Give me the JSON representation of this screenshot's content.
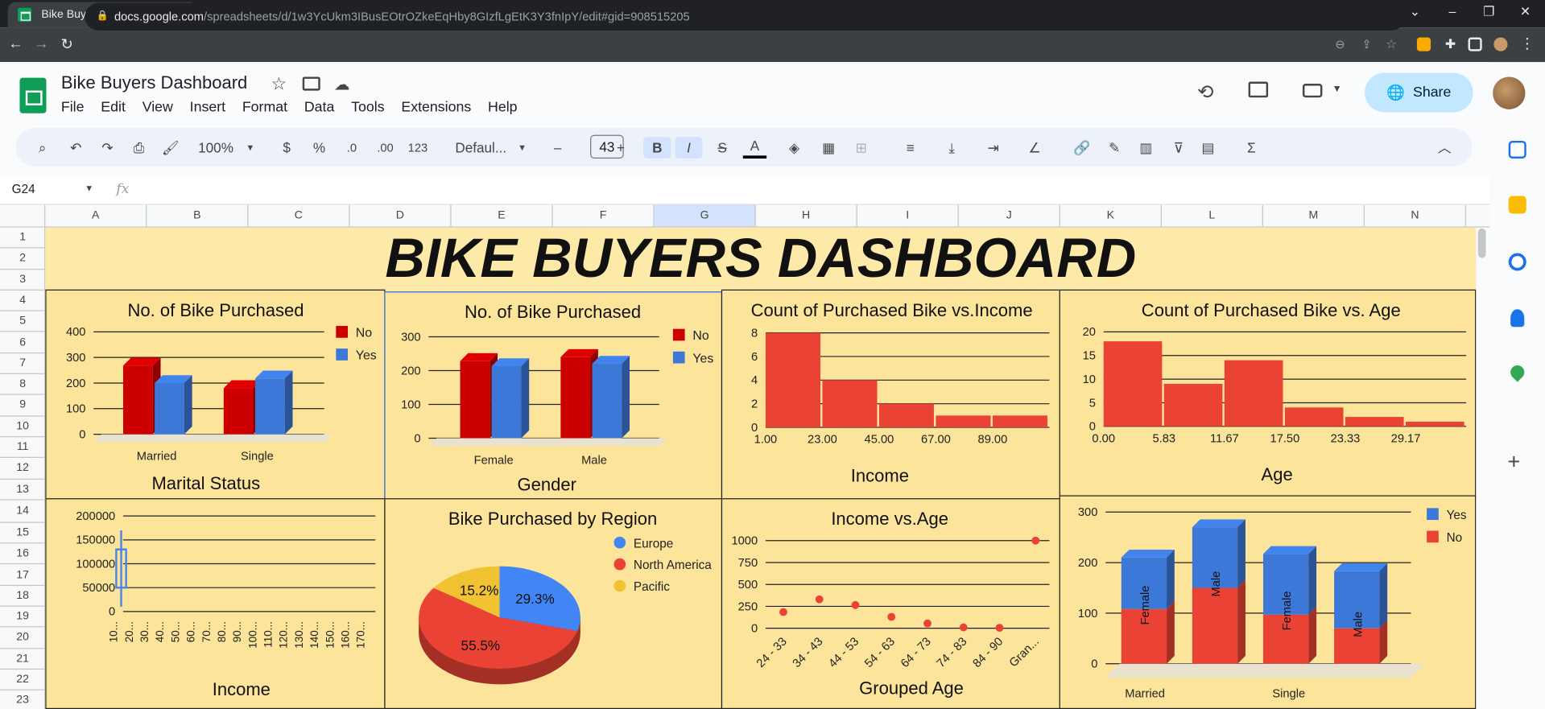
{
  "browser": {
    "tab_title": "Bike Buyers Dashboard - Google",
    "url_host": "docs.google.com",
    "url_path": "/spreadsheets/d/1w3YcUkm3IBusEOtrOZkeEqHby8GIzfLgEtK3Y3fnIpY/edit#gid=908515205"
  },
  "app": {
    "doc_title": "Bike Buyers Dashboard",
    "share_label": "Share",
    "menus": [
      "File",
      "Edit",
      "View",
      "Insert",
      "Format",
      "Data",
      "Tools",
      "Extensions",
      "Help"
    ]
  },
  "toolbar": {
    "zoom": "100%",
    "currency": "$",
    "percent": "%",
    "dec_less": ".0",
    "dec_more": ".00",
    "number_format": "123",
    "font": "Defaul...",
    "font_size": "43",
    "bold": "B",
    "italic": "I",
    "strike": "S",
    "text_color": "A"
  },
  "formula_bar": {
    "cell_ref": "G24",
    "fx": "fx"
  },
  "columns": [
    "A",
    "B",
    "C",
    "D",
    "E",
    "F",
    "G",
    "H",
    "I",
    "J",
    "K",
    "L",
    "M",
    "N"
  ],
  "rows": [
    "1",
    "2",
    "3",
    "4",
    "5",
    "6",
    "7",
    "8",
    "9",
    "10",
    "11",
    "12",
    "13",
    "14",
    "15",
    "16",
    "17",
    "18",
    "19",
    "20",
    "21",
    "22",
    "23"
  ],
  "dashboard_title": "BIKE BUYERS DASHBOARD",
  "colors": {
    "no": "#cc0000",
    "yes": "#3c78d8",
    "hist": "#ea4335",
    "europe": "#4285f4",
    "north_america": "#ea4335",
    "pacific": "#f1c232",
    "panel": "#fde49b"
  },
  "chart_data": [
    {
      "id": "marital",
      "type": "bar",
      "title": "No. of Bike Purchased",
      "xlabel": "Marital Status",
      "ylabel": "",
      "categories": [
        "Married",
        "Single"
      ],
      "series": [
        {
          "name": "No",
          "values": [
            268,
            180
          ]
        },
        {
          "name": "Yes",
          "values": [
            200,
            218
          ]
        }
      ],
      "ylim": [
        0,
        400
      ],
      "yticks": [
        "0",
        "100",
        "200",
        "300",
        "400"
      ],
      "legend": "right"
    },
    {
      "id": "gender",
      "type": "bar",
      "title": "No. of Bike Purchased",
      "xlabel": "Gender",
      "ylabel": "",
      "categories": [
        "Female",
        "Male"
      ],
      "series": [
        {
          "name": "No",
          "values": [
            228,
            240
          ]
        },
        {
          "name": "Yes",
          "values": [
            213,
            220
          ]
        }
      ],
      "ylim": [
        0,
        300
      ],
      "yticks": [
        "0",
        "100",
        "200",
        "300"
      ],
      "legend": "right"
    },
    {
      "id": "income_hist",
      "type": "bar",
      "title": "Count of Purchased Bike vs.Income",
      "xlabel": "Income",
      "ylabel": "",
      "categories": [
        "1.00",
        "23.00",
        "45.00",
        "67.00",
        "89.00"
      ],
      "values": [
        8,
        4,
        2,
        1,
        1
      ],
      "ylim": [
        0,
        8
      ],
      "yticks": [
        "0",
        "2",
        "4",
        "6",
        "8"
      ]
    },
    {
      "id": "age_hist",
      "type": "bar",
      "title": "Count of Purchased Bike vs. Age",
      "xlabel": "Age",
      "ylabel": "",
      "categories": [
        "0.00",
        "5.83",
        "11.67",
        "17.50",
        "23.33",
        "29.17"
      ],
      "values": [
        18,
        9,
        14,
        4,
        2,
        1
      ],
      "ylim": [
        0,
        20
      ],
      "yticks": [
        "0",
        "5",
        "10",
        "15",
        "20"
      ]
    },
    {
      "id": "income_box",
      "type": "line",
      "title": "",
      "xlabel": "Income",
      "ylabel": "",
      "categories": [
        "10...",
        "20...",
        "30...",
        "40...",
        "50...",
        "60...",
        "70...",
        "80...",
        "90...",
        "100...",
        "110...",
        "120...",
        "130...",
        "140...",
        "150...",
        "160...",
        "170..."
      ],
      "ylim": [
        0,
        200000
      ],
      "yticks": [
        "0",
        "50000",
        "100000",
        "150000",
        "200000"
      ],
      "box": {
        "low": 10000,
        "q1": 50000,
        "q3": 130000,
        "high": 170000
      }
    },
    {
      "id": "region",
      "type": "pie",
      "title": "Bike Purchased by Region",
      "labels": [
        "Europe",
        "North America",
        "Pacific"
      ],
      "values": [
        29.3,
        55.5,
        15.2
      ],
      "slice_labels": [
        "29.3%",
        "55.5%",
        "15.2%"
      ],
      "legend": "right"
    },
    {
      "id": "income_age",
      "type": "scatter",
      "title": "Income vs.Age",
      "xlabel": "Grouped Age",
      "ylabel": "",
      "categories": [
        "24 - 33",
        "34 - 43",
        "44 - 53",
        "54 - 63",
        "64 - 73",
        "74 - 83",
        "84 - 90",
        "Gran..."
      ],
      "values": [
        185,
        330,
        265,
        130,
        55,
        10,
        5,
        1000
      ],
      "ylim": [
        0,
        1000
      ],
      "yticks": [
        "0",
        "250",
        "500",
        "750",
        "1000"
      ]
    },
    {
      "id": "stacked",
      "type": "bar",
      "title": "",
      "xlabel": "",
      "ylabel": "",
      "groups": [
        "Married",
        "Single"
      ],
      "categories": [
        "Female",
        "Male",
        "Female",
        "Male"
      ],
      "series": [
        {
          "name": "No",
          "values": [
            108,
            150,
            97,
            70
          ]
        },
        {
          "name": "Yes",
          "values": [
            102,
            120,
            120,
            113
          ]
        }
      ],
      "ylim": [
        0,
        300
      ],
      "yticks": [
        "0",
        "100",
        "200",
        "300"
      ],
      "legend": "top-right"
    }
  ]
}
